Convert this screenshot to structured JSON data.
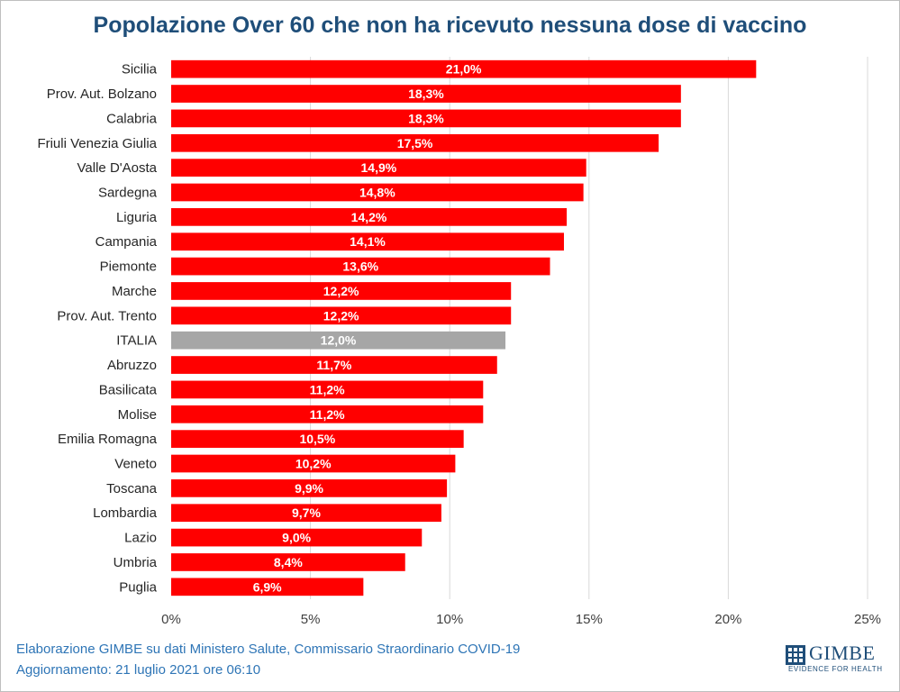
{
  "chart_data": {
    "type": "bar",
    "orientation": "horizontal",
    "title": "Popolazione Over 60 che non ha ricevuto nessuna dose di vaccino",
    "categories": [
      "Sicilia",
      "Prov. Aut. Bolzano",
      "Calabria",
      "Friuli Venezia Giulia",
      "Valle D'Aosta",
      "Sardegna",
      "Liguria",
      "Campania",
      "Piemonte",
      "Marche",
      "Prov. Aut. Trento",
      "ITALIA",
      "Abruzzo",
      "Basilicata",
      "Molise",
      "Emilia Romagna",
      "Veneto",
      "Toscana",
      "Lombardia",
      "Lazio",
      "Umbria",
      "Puglia"
    ],
    "values": [
      21.0,
      18.3,
      18.3,
      17.5,
      14.9,
      14.8,
      14.2,
      14.1,
      13.6,
      12.2,
      12.2,
      12.0,
      11.7,
      11.2,
      11.2,
      10.5,
      10.2,
      9.9,
      9.7,
      9.0,
      8.4,
      6.9
    ],
    "data_labels": [
      "21,0%",
      "18,3%",
      "18,3%",
      "17,5%",
      "14,9%",
      "14,8%",
      "14,2%",
      "14,1%",
      "13,6%",
      "12,2%",
      "12,2%",
      "12,0%",
      "11,7%",
      "11,2%",
      "11,2%",
      "10,5%",
      "10,2%",
      "9,9%",
      "9,7%",
      "9,0%",
      "8,4%",
      "6,9%"
    ],
    "highlight_category": "ITALIA",
    "xlim": [
      0,
      25
    ],
    "x_ticks": [
      0,
      5,
      10,
      15,
      20,
      25
    ],
    "x_tick_labels": [
      "0%",
      "5%",
      "10%",
      "15%",
      "20%",
      "25%"
    ],
    "grid": true,
    "xlabel": "",
    "ylabel": ""
  },
  "colors": {
    "bar": "#ff0000",
    "highlight_bar": "#a6a6a6",
    "grid": "#d9d9d9",
    "title": "#1f4e79",
    "footer": "#2e75b6"
  },
  "footer": {
    "source": "Elaborazione GIMBE su dati Ministero Salute, Commissario Straordinario COVID-19",
    "updated": "Aggiornamento: 21 luglio 2021 ore 06:10"
  },
  "logo": {
    "name": "GIMBE",
    "tagline": "EVIDENCE FOR HEALTH",
    "icon": "gimbe-grid-icon"
  }
}
